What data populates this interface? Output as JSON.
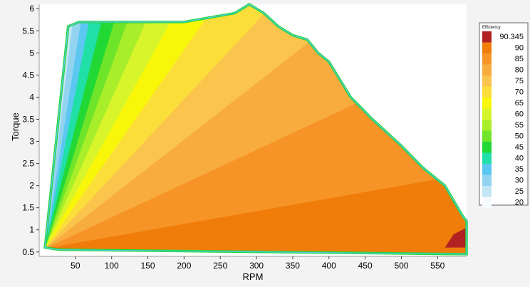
{
  "chart_data": {
    "type": "heatmap",
    "subtype": "filled-contour",
    "xlabel": "RPM",
    "ylabel": "Torque",
    "xlim": [
      0,
      590
    ],
    "ylim": [
      0.4,
      6.1
    ],
    "xticks": [
      50,
      100,
      150,
      200,
      250,
      300,
      350,
      400,
      450,
      500,
      550
    ],
    "yticks": [
      0.5,
      1,
      1.5,
      2,
      2.5,
      3,
      3.5,
      4,
      4.5,
      5,
      5.5,
      6
    ],
    "grid": false,
    "legend": {
      "title": "Efficiency",
      "placement": "right",
      "max_label": "90.345",
      "levels": [
        90.345,
        90,
        85,
        80,
        75,
        70,
        65,
        60,
        55,
        50,
        45,
        40,
        35,
        30,
        25,
        20
      ],
      "colors": [
        "#b22222",
        "#f07d0a",
        "#f79428",
        "#f8ac3e",
        "#fac44d",
        "#fcde3a",
        "#f8f70a",
        "#d7f52a",
        "#a8ee2a",
        "#6fe52a",
        "#22d834",
        "#20e0a8",
        "#5cc8f2",
        "#92d3f0",
        "#c2e6f4",
        "#f6fbfd"
      ]
    },
    "boundary_max_torque": [
      [
        8,
        0.6
      ],
      [
        40,
        5.6
      ],
      [
        55,
        5.7
      ],
      [
        110,
        5.7
      ],
      [
        140,
        5.7
      ],
      [
        200,
        5.7
      ],
      [
        270,
        5.9
      ],
      [
        290,
        6.1
      ],
      [
        310,
        5.9
      ],
      [
        330,
        5.6
      ],
      [
        350,
        5.4
      ],
      [
        370,
        5.3
      ],
      [
        385,
        5.0
      ],
      [
        400,
        4.8
      ],
      [
        430,
        4.0
      ],
      [
        460,
        3.5
      ],
      [
        500,
        2.9
      ],
      [
        530,
        2.4
      ],
      [
        560,
        2.0
      ],
      [
        585,
        1.3
      ],
      [
        590,
        1.2
      ]
    ],
    "efficiency_angle_bands": [
      {
        "level": 20,
        "angle": 87
      },
      {
        "level": 25,
        "angle": 85
      },
      {
        "level": 30,
        "angle": 83
      },
      {
        "level": 35,
        "angle": 81
      },
      {
        "level": 40,
        "angle": 79
      },
      {
        "level": 45,
        "angle": 76
      },
      {
        "level": 50,
        "angle": 73
      },
      {
        "level": 55,
        "angle": 70
      },
      {
        "level": 60,
        "angle": 66
      },
      {
        "level": 65,
        "angle": 61
      },
      {
        "level": 70,
        "angle": 55
      },
      {
        "level": 75,
        "angle": 47
      },
      {
        "level": 80,
        "angle": 38
      },
      {
        "level": 85,
        "angle": 25
      },
      {
        "level": 90,
        "angle": 10
      }
    ],
    "peak_region": {
      "level": 90.345,
      "rpm": [
        560,
        590
      ],
      "torque": [
        0.6,
        1.05
      ]
    }
  }
}
